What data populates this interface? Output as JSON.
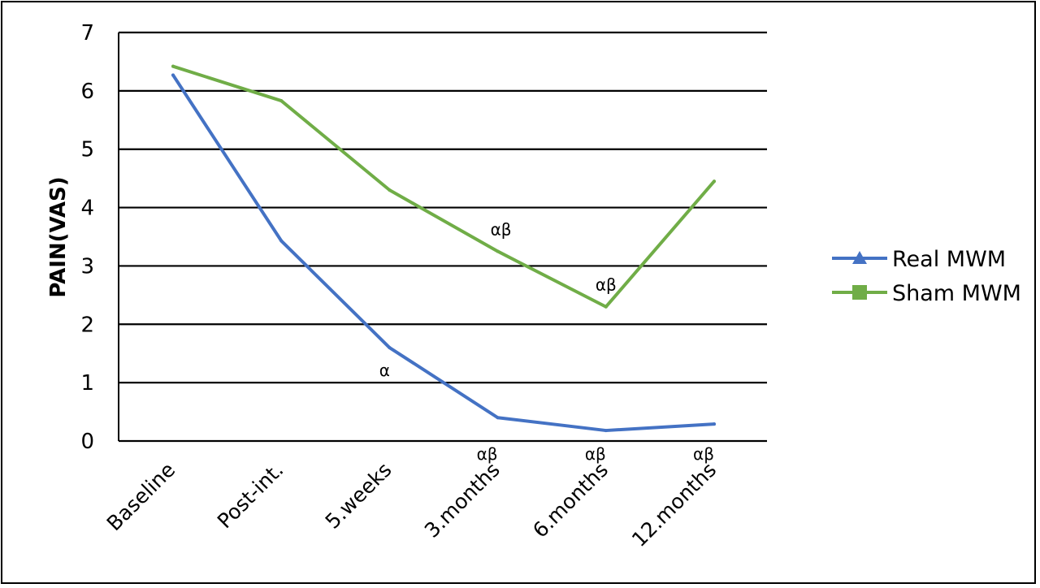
{
  "chart_data": {
    "type": "line",
    "title": "",
    "xlabel": "",
    "ylabel": "PAIN(VAS)",
    "ylim": [
      0,
      7
    ],
    "yticks": [
      "0",
      "1",
      "2",
      "3",
      "4",
      "5",
      "6",
      "7"
    ],
    "grid": "horizontal",
    "legend": "right",
    "categories": [
      "Baseline",
      "Post-int.",
      "5.weeks",
      "3.months",
      "6.months",
      "12.months"
    ],
    "series": [
      {
        "name": "Real MWM",
        "color": "#4472c4",
        "marker": "triangle",
        "values": [
          6.27,
          3.43,
          1.6,
          0.4,
          0.18,
          0.29
        ]
      },
      {
        "name": "Sham MWM",
        "color": "#70ad47",
        "marker": "square",
        "values": [
          6.42,
          5.83,
          4.3,
          3.25,
          2.3,
          4.45
        ]
      }
    ],
    "annotations": [
      {
        "text": "α",
        "series": "Real MWM",
        "category": "5.weeks",
        "placement": "below"
      },
      {
        "text": "αβ",
        "series": "Real MWM",
        "category": "3.months",
        "placement": "under-axis"
      },
      {
        "text": "αβ",
        "series": "Real MWM",
        "category": "6.months",
        "placement": "under-axis"
      },
      {
        "text": "αβ",
        "series": "Real MWM",
        "category": "12.months",
        "placement": "under-axis"
      },
      {
        "text": "αβ",
        "series": "Sham MWM",
        "category": "3.months",
        "placement": "above"
      },
      {
        "text": "αβ",
        "series": "Sham MWM",
        "category": "6.months",
        "placement": "above"
      }
    ]
  }
}
